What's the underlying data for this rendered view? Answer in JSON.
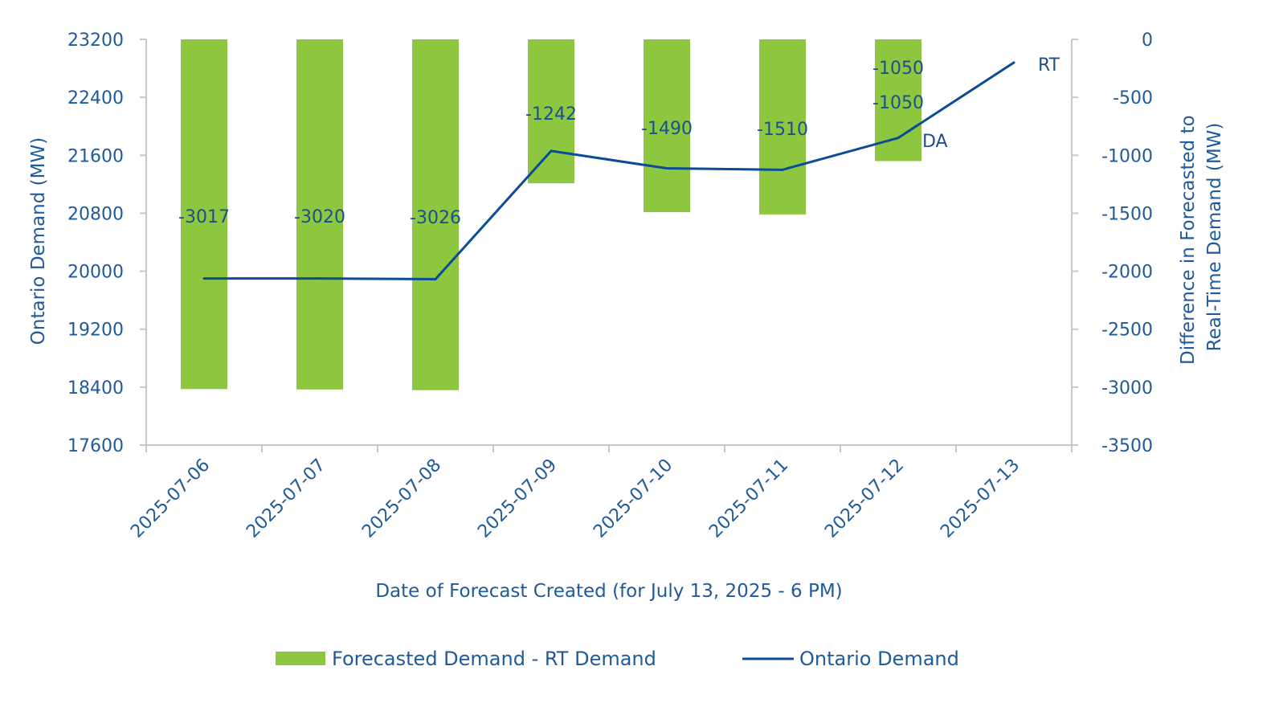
{
  "chart_data": {
    "type": "bar",
    "categories": [
      "2025-07-06",
      "2025-07-07",
      "2025-07-08",
      "2025-07-09",
      "2025-07-10",
      "2025-07-11",
      "2025-07-12",
      "2025-07-13"
    ],
    "series": [
      {
        "name": "Forecasted Demand - RT Demand",
        "type": "bar",
        "axis": "right",
        "values": [
          -3017,
          -3020,
          -3026,
          -1242,
          -1490,
          -1510,
          -1050,
          null
        ],
        "labels": [
          "-3017",
          "-3020",
          "-3026",
          "-1242",
          "-1490",
          "-1510",
          "-1050",
          ""
        ],
        "color": "#8dc63f"
      },
      {
        "name": "Ontario Demand",
        "type": "line",
        "axis": "left",
        "values": [
          19900,
          19900,
          19890,
          21660,
          21420,
          21400,
          21840,
          22880
        ],
        "color": "#0a4c95"
      }
    ],
    "annotations": [
      {
        "text": "-1050",
        "category_index": 6,
        "axis": "right",
        "value": -1050
      },
      {
        "text": "DA",
        "category_index": 6
      },
      {
        "text": "RT",
        "category_index": 7
      }
    ],
    "xlabel": "Date of Forecast Created (for July 13, 2025 - 6 PM)",
    "ylabel": "Ontario Demand (MW)",
    "y2label_lines": [
      "Difference in Forecasted to",
      "Real-Time Demand (MW)"
    ],
    "ylim": [
      17600,
      23200
    ],
    "y_ticks": [
      23200,
      22400,
      21600,
      20800,
      20000,
      19200,
      18400,
      17600
    ],
    "y2lim": [
      -3500,
      0
    ],
    "y2_ticks": [
      0,
      -500,
      -1000,
      -1500,
      -2000,
      -2500,
      -3000,
      -3500
    ],
    "grid": false,
    "legend_position": "bottom",
    "axis_color": "#c8c8c8",
    "text_color": "#1f5a9a"
  }
}
